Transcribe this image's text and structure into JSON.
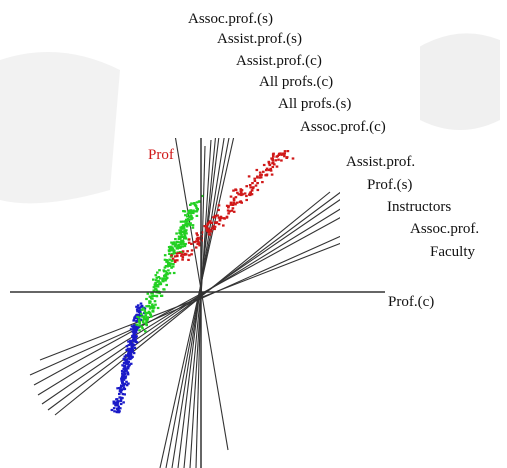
{
  "chart_data": {
    "type": "scatter",
    "title": "",
    "xlabel": "",
    "ylabel": "",
    "group_label": "Prof",
    "axis_labels": [
      "Assoc.prof.(s)",
      "Assist.prof.(s)",
      "Assist.prof.(c)",
      "All profs.(c)",
      "All profs.(s)",
      "Assoc.prof.(c)",
      "Assist.prof.",
      "Prof.(s)",
      "Instructors",
      "Assoc.prof.",
      "Faculty",
      "Prof.(c)"
    ],
    "series": [
      {
        "color": "#1a1ac8",
        "n": 260
      },
      {
        "color": "#22d022",
        "n": 320
      },
      {
        "color": "#d01818",
        "n": 200
      }
    ],
    "colors": {
      "prof_label": "#d01818",
      "axes": "#333333",
      "lines": "#333333",
      "watermark": "#e6e6e6"
    }
  }
}
